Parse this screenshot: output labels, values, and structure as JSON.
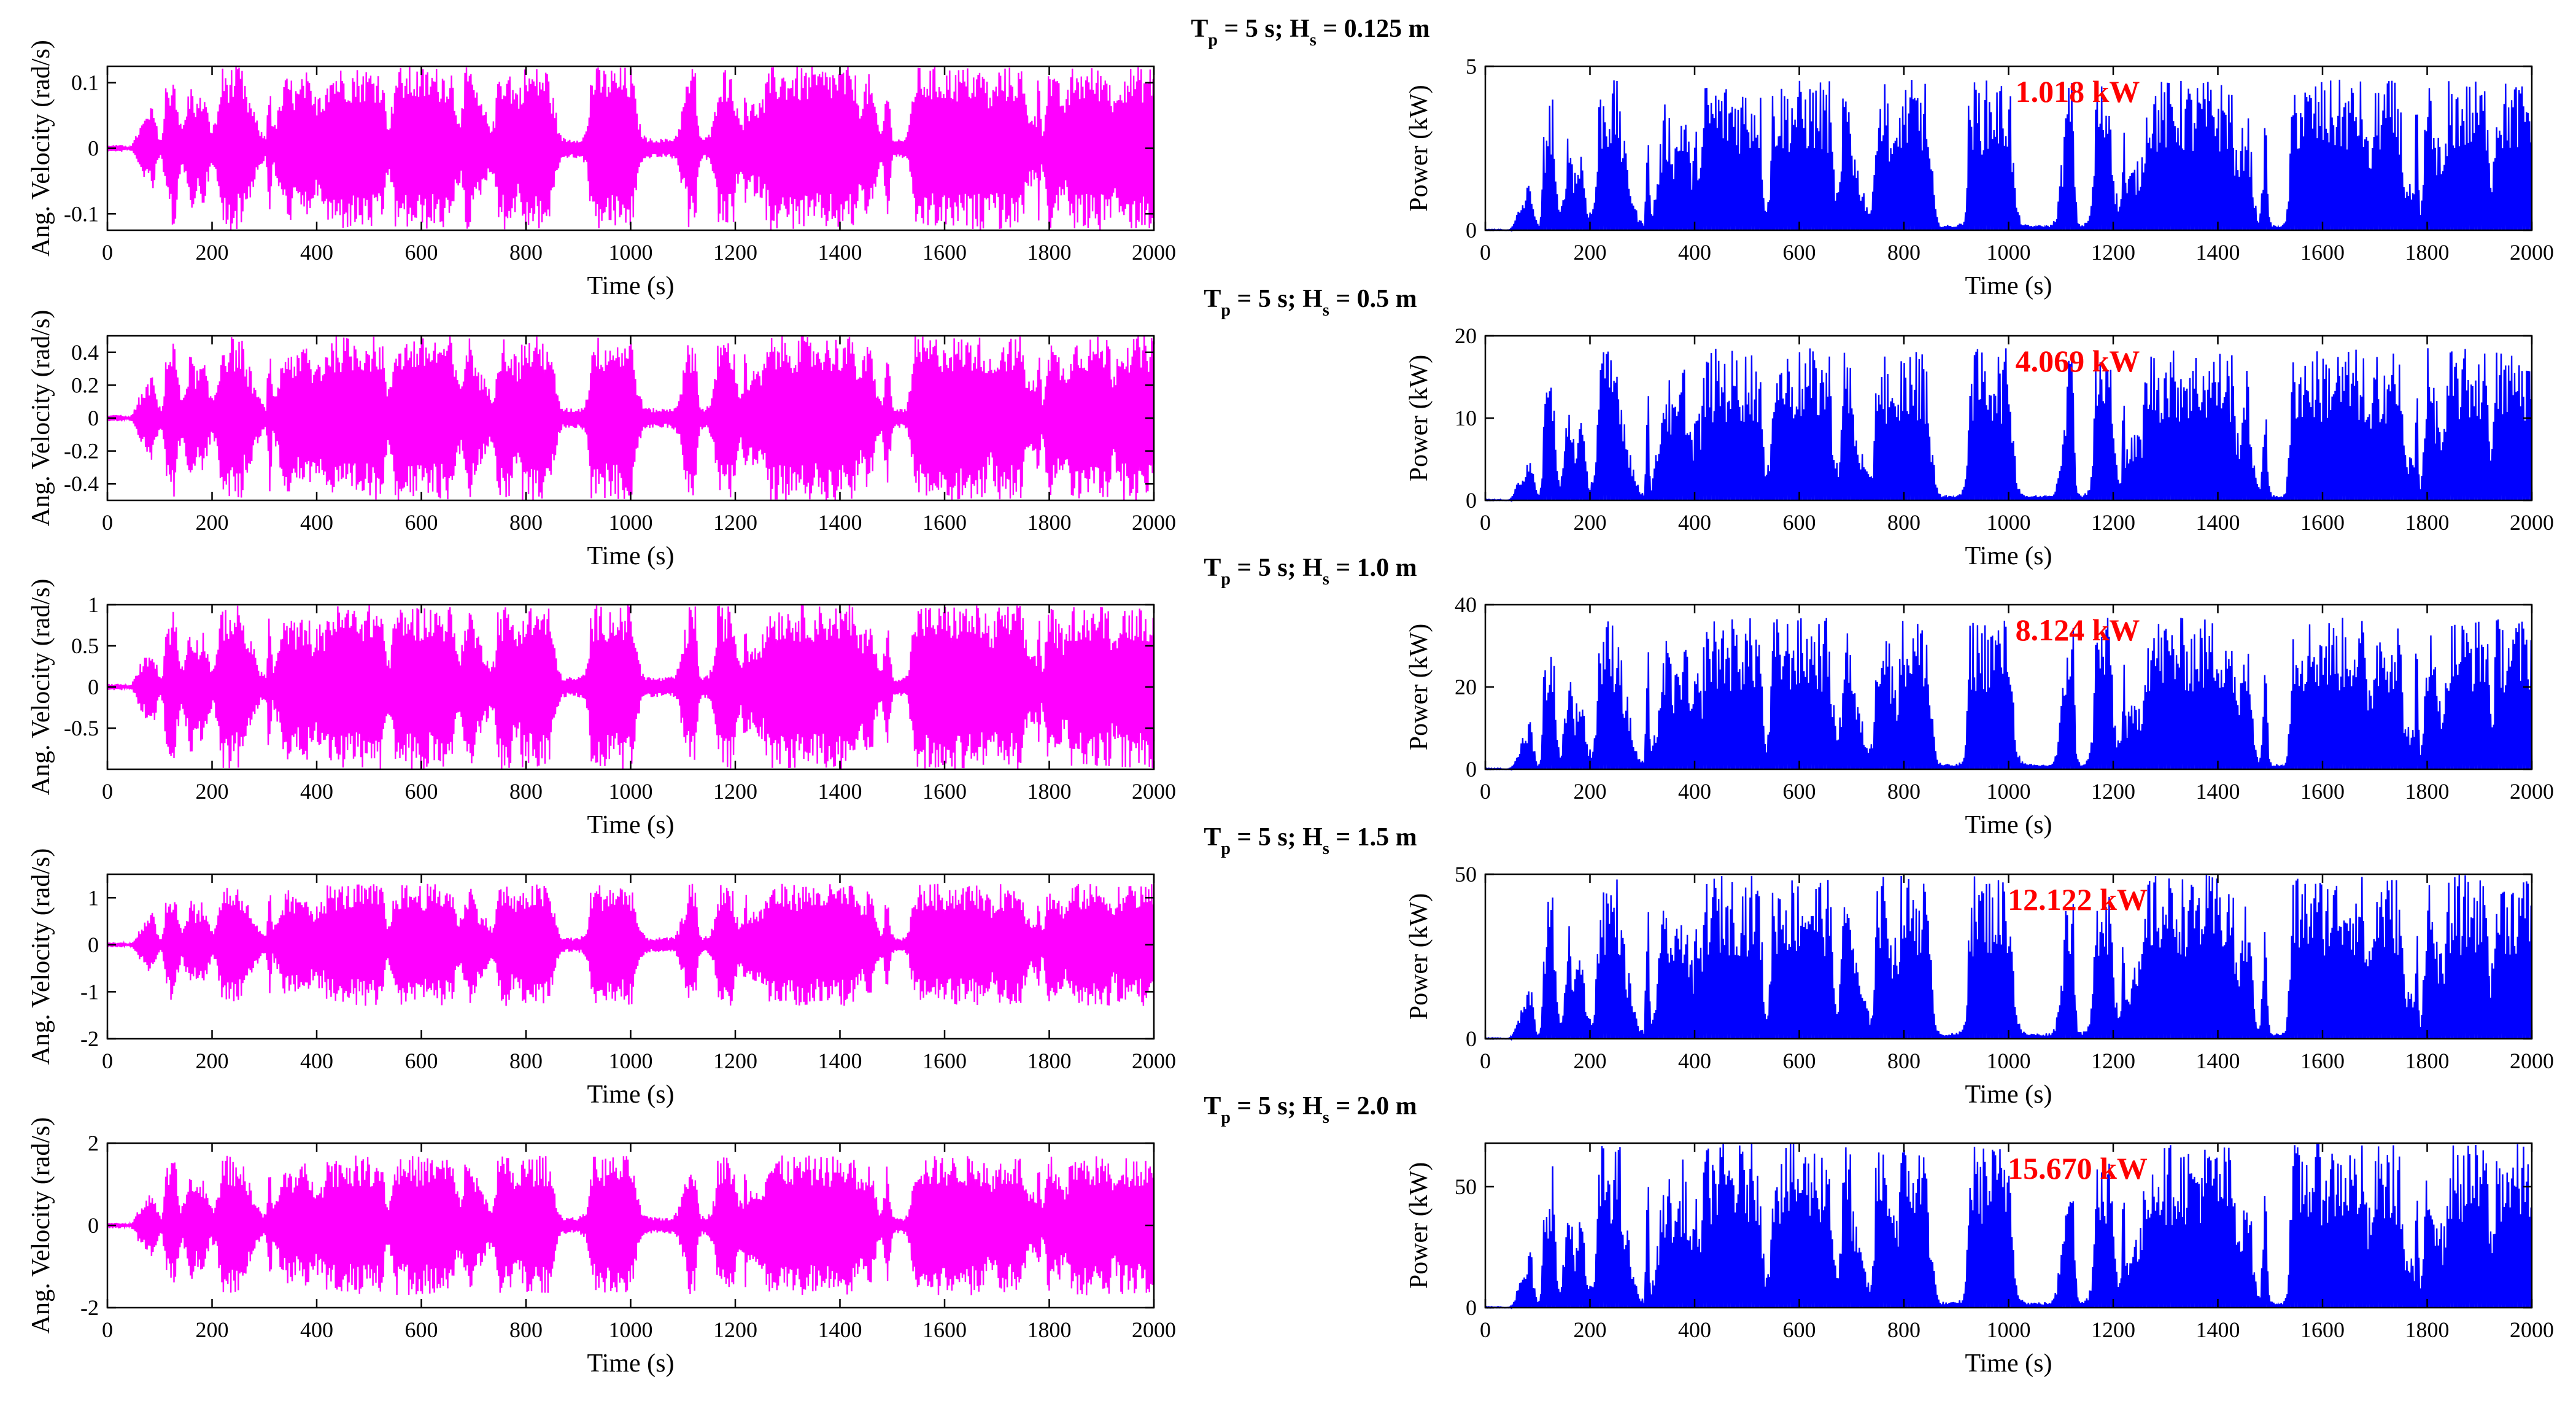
{
  "chart_data": {
    "type": "line",
    "colors": {
      "velocity": "#ff00ff",
      "power": "#0000ff",
      "annotation": "#ff0000"
    },
    "x": {
      "min": 0,
      "max": 2000,
      "ticks": [
        "0",
        "200",
        "400",
        "600",
        "800",
        "1000",
        "1200",
        "1400",
        "1600",
        "1800",
        "2000"
      ]
    },
    "xlabel": "Time (s)",
    "ylabel_velocity": "Ang. Velocity (rad/s)",
    "ylabel_power": "Power (kW)",
    "rows": [
      {
        "title": {
          "T": "T",
          "Tsub": "p",
          "mid": " = 5 s; H",
          "Hsub": "s",
          "end": " = 0.125 m"
        },
        "velocity": {
          "ylim": [
            -0.125,
            0.125
          ],
          "ticks": [
            0.1,
            0,
            -0.1
          ],
          "ticklabels": [
            "0.1",
            "0",
            "-0.1"
          ],
          "amplitude": 0.125
        },
        "power": {
          "ylim": [
            0,
            5
          ],
          "ticks": [
            5,
            0
          ],
          "ticklabels": [
            "5",
            "0"
          ],
          "peak": 4.6,
          "mean_label": "1.018 kW"
        }
      },
      {
        "title": {
          "T": "T",
          "Tsub": "p",
          "mid": " = 5 s; H",
          "Hsub": "s",
          "end": " = 0.5 m"
        },
        "velocity": {
          "ylim": [
            -0.5,
            0.5
          ],
          "ticks": [
            0.4,
            0.2,
            0,
            -0.2,
            -0.4
          ],
          "ticklabels": [
            "0.4",
            "0.2",
            "0",
            "-0.2",
            "-0.4"
          ],
          "amplitude": 0.5
        },
        "power": {
          "ylim": [
            0,
            20
          ],
          "ticks": [
            20,
            10,
            0
          ],
          "ticklabels": [
            "20",
            "10",
            "0"
          ],
          "peak": 18.5,
          "mean_label": "4.069 kW"
        }
      },
      {
        "title": {
          "T": "T",
          "Tsub": "p",
          "mid": " = 5 s; H",
          "Hsub": "s",
          "end": " = 1.0 m"
        },
        "velocity": {
          "ylim": [
            -1,
            1
          ],
          "ticks": [
            1,
            0.5,
            0,
            -0.5
          ],
          "ticklabels": [
            "1",
            "0.5",
            "0",
            "-0.5"
          ],
          "amplitude": 1.0
        },
        "power": {
          "ylim": [
            0,
            40
          ],
          "ticks": [
            40,
            20,
            0
          ],
          "ticklabels": [
            "40",
            "20",
            "0"
          ],
          "peak": 37,
          "mean_label": "8.124 kW"
        }
      },
      {
        "title": {
          "T": "T",
          "Tsub": "p",
          "mid": " = 5 s; H",
          "Hsub": "s",
          "end": " = 1.5 m"
        },
        "velocity": {
          "ylim": [
            -2,
            1.5
          ],
          "ticks": [
            1,
            0,
            -1,
            -2
          ],
          "ticklabels": [
            "1",
            "0",
            "-1",
            "-2"
          ],
          "amplitude": 1.3
        },
        "power": {
          "ylim": [
            0,
            50
          ],
          "ticks": [
            50,
            0
          ],
          "ticklabels": [
            "50",
            "0"
          ],
          "peak": 50,
          "mean_label": "12.122 kW"
        }
      },
      {
        "title": {
          "T": "T",
          "Tsub": "p",
          "mid": " = 5 s; H",
          "Hsub": "s",
          "end": " = 2.0 m"
        },
        "velocity": {
          "ylim": [
            -2,
            2
          ],
          "ticks": [
            2,
            0,
            -2
          ],
          "ticklabels": [
            "2",
            "0",
            "-2"
          ],
          "amplitude": 1.7
        },
        "power": {
          "ylim": [
            0,
            68
          ],
          "ticks": [
            50,
            0
          ],
          "ticklabels": [
            "50",
            "0"
          ],
          "peak": 68,
          "mean_label": "15.670 kW"
        }
      }
    ]
  }
}
